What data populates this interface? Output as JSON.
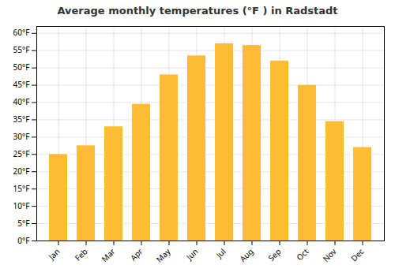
{
  "chart_data": {
    "type": "bar",
    "title": "Average monthly temperatures (°F ) in Radstadt",
    "categories": [
      "Jan",
      "Feb",
      "Mar",
      "Apr",
      "May",
      "Jun",
      "Jul",
      "Aug",
      "Sep",
      "Oct",
      "Nov",
      "Dec"
    ],
    "values": [
      25,
      27.5,
      33,
      39.5,
      48,
      53.5,
      57,
      56.5,
      52,
      45,
      34.5,
      27
    ],
    "color": "#FFBB33",
    "ylim": [
      0,
      62
    ],
    "yticks": [
      {
        "value": 0,
        "label": "0°F"
      },
      {
        "value": 5,
        "label": "5°F"
      },
      {
        "value": 10,
        "label": "10°F"
      },
      {
        "value": 15,
        "label": "15°F"
      },
      {
        "value": 20,
        "label": "20°F"
      },
      {
        "value": 25,
        "label": "25°F"
      },
      {
        "value": 30,
        "label": "30°F"
      },
      {
        "value": 35,
        "label": "35°F"
      },
      {
        "value": 40,
        "label": "40°F"
      },
      {
        "value": 45,
        "label": "45°F"
      },
      {
        "value": 50,
        "label": "50°F"
      },
      {
        "value": 55,
        "label": "55°F"
      },
      {
        "value": 60,
        "label": "60°F"
      }
    ],
    "grid": true
  }
}
